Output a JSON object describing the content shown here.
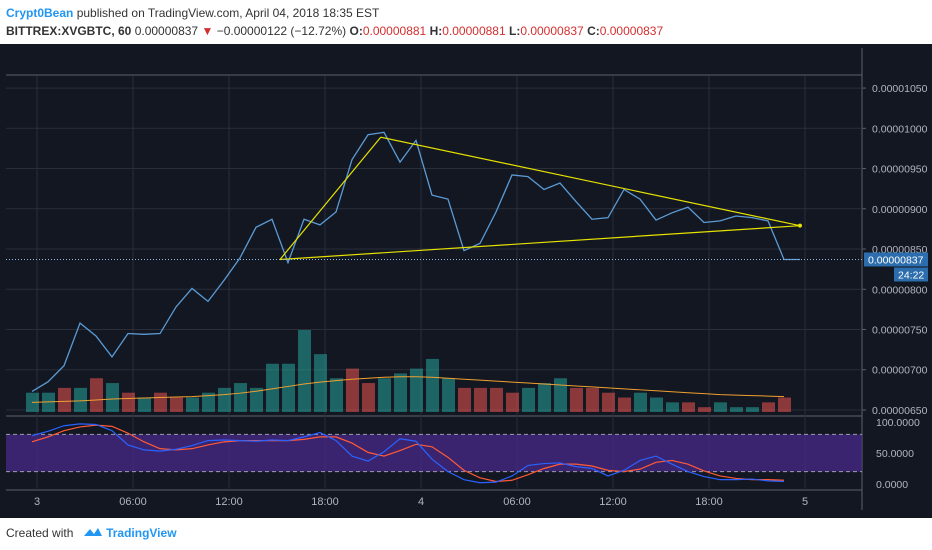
{
  "header": {
    "author": "Crypt0Bean",
    "published_text": "published on TradingView.com, April 04, 2018 18:35 EST",
    "symbol": "BITTREX:XVGBTC, 60",
    "last": "0.00000837",
    "change_arrow": "▼",
    "change": "−0.00000122 (−12.72%)",
    "o_label": "O:",
    "o": "0.00000881",
    "h_label": "H:",
    "h": "0.00000881",
    "l_label": "L:",
    "l": "0.00000837",
    "c_label": "C:",
    "c": "0.00000837"
  },
  "footer": {
    "created_with": "Created with",
    "brand": "TradingView"
  },
  "colors": {
    "background": "#131722",
    "grid": "#2a2e39",
    "price_line": "#5b9bd5",
    "trendline": "#e5e100",
    "volume_up": "#26a69a",
    "volume_down": "#ef5350",
    "volume_ma": "#f0a030",
    "stoch_k": "#2962ff",
    "stoch_d": "#ff5a36",
    "stoch_band": "#4a2a8a",
    "price_label_bg": "#2c6dad"
  },
  "chart_data": {
    "type": "line",
    "series": [
      {
        "name": "",
        "x": [
          0,
          1,
          2,
          3,
          4,
          5,
          6,
          7,
          8,
          9,
          10,
          11,
          12,
          13,
          14,
          15,
          16,
          17,
          18,
          19,
          20,
          21,
          22,
          23,
          24,
          25,
          26,
          27,
          28,
          29,
          30,
          31,
          32,
          33,
          34,
          35,
          36,
          37,
          38,
          39,
          40,
          41,
          42,
          43,
          44,
          45,
          46,
          47,
          48
        ],
        "values": [
          6.73e-06,
          6.85e-06,
          7.05e-06,
          7.58e-06,
          7.42e-06,
          7.16e-06,
          7.45e-06,
          7.44e-06,
          7.45e-06,
          7.78e-06,
          8.01e-06,
          7.85e-06,
          8.11e-06,
          8.39e-06,
          8.77e-06,
          8.87e-06,
          8.33e-06,
          8.87e-06,
          8.8e-06,
          8.96e-06,
          9.61e-06,
          9.92e-06,
          9.95e-06,
          9.58e-06,
          9.85e-06,
          9.17e-06,
          9.12e-06,
          8.48e-06,
          8.57e-06,
          8.96e-06,
          9.42e-06,
          9.4e-06,
          9.24e-06,
          9.32e-06,
          9.09e-06,
          8.87e-06,
          8.89e-06,
          9.24e-06,
          9.12e-06,
          8.86e-06,
          8.95e-06,
          9.02e-06,
          8.83e-06,
          8.85e-06,
          8.91e-06,
          8.89e-06,
          8.85e-06,
          8.37e-06,
          8.37e-06
        ]
      }
    ],
    "volume": {
      "values": [
        4,
        4,
        5,
        5,
        7,
        6,
        4,
        3,
        4,
        3,
        3,
        4,
        5,
        6,
        5,
        10,
        10,
        17,
        12,
        7,
        9,
        6,
        7,
        8,
        9,
        11,
        7,
        5,
        5,
        5,
        4,
        5,
        6,
        7,
        5,
        5,
        4,
        3,
        4,
        3,
        2,
        2,
        1,
        2,
        1,
        1,
        2,
        3
      ],
      "direction": [
        "u",
        "u",
        "d",
        "u",
        "d",
        "u",
        "d",
        "u",
        "d",
        "d",
        "u",
        "u",
        "u",
        "u",
        "u",
        "u",
        "u",
        "u",
        "u",
        "u",
        "d",
        "d",
        "u",
        "u",
        "u",
        "u",
        "u",
        "d",
        "d",
        "d",
        "d",
        "u",
        "u",
        "u",
        "d",
        "d",
        "d",
        "d",
        "u",
        "u",
        "u",
        "d",
        "d",
        "u",
        "u",
        "u",
        "d",
        "d"
      ],
      "ma": [
        2.0,
        2.1,
        2.2,
        2.3,
        2.5,
        2.7,
        2.8,
        2.9,
        3.0,
        3.1,
        3.2,
        3.4,
        3.6,
        3.9,
        4.3,
        4.8,
        5.3,
        5.8,
        6.2,
        6.5,
        6.8,
        7.0,
        7.2,
        7.3,
        7.3,
        7.2,
        7.0,
        6.8,
        6.6,
        6.4,
        6.2,
        6.0,
        5.8,
        5.6,
        5.4,
        5.2,
        5.0,
        4.8,
        4.6,
        4.4,
        4.2,
        4.0,
        3.8,
        3.6,
        3.5,
        3.4,
        3.3,
        3.2
      ]
    },
    "trendlines": [
      {
        "x": [
          15.5,
          21.8
        ],
        "y": [
          8.37e-06,
          9.89e-06
        ]
      },
      {
        "x": [
          15.5,
          48.0
        ],
        "y": [
          8.37e-06,
          8.79e-06
        ]
      },
      {
        "x": [
          21.8,
          48.0
        ],
        "y": [
          9.89e-06,
          8.79e-06
        ]
      }
    ],
    "stochastic": {
      "k": [
        78,
        85,
        94,
        97,
        96,
        86,
        63,
        55,
        53,
        56,
        62,
        70,
        71,
        70,
        69,
        71,
        70,
        76,
        83,
        70,
        45,
        37,
        52,
        73,
        69,
        40,
        20,
        7,
        2,
        3,
        13,
        30,
        33,
        34,
        28,
        25,
        13,
        22,
        38,
        45,
        32,
        20,
        12,
        7,
        7,
        8,
        5,
        4
      ],
      "d": [
        68,
        76,
        86,
        92,
        95,
        93,
        82,
        68,
        57,
        55,
        57,
        63,
        68,
        70,
        70,
        70,
        70,
        72,
        76,
        76,
        66,
        51,
        45,
        54,
        64,
        60,
        43,
        22,
        10,
        4,
        6,
        15,
        25,
        32,
        32,
        29,
        22,
        20,
        24,
        35,
        38,
        32,
        21,
        13,
        9,
        7,
        7,
        6
      ],
      "upper_band": 80,
      "lower_band": 20
    },
    "y_axis_labels": [
      "0.00001050",
      "0.00001000",
      "0.00000950",
      "0.00000900",
      "0.00000850",
      "0.00000800",
      "0.00000750",
      "0.00000700",
      "0.00000650"
    ],
    "ylim": [
      6.45e-06,
      1.065e-05
    ],
    "stoch_axis_labels": [
      "100.0000",
      "50.0000",
      "0.0000"
    ],
    "x_tick_labels": [
      "3",
      "06:00",
      "12:00",
      "18:00",
      "4",
      "06:00",
      "12:00",
      "18:00",
      "5"
    ],
    "current_price_label": "0.00000837",
    "countdown_label": "24:22"
  }
}
